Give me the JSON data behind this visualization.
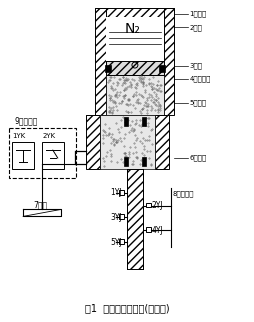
{
  "title": "图1  液压机构原理图(改进前)",
  "bg_color": "#ffffff",
  "fig_width": 2.55,
  "fig_height": 3.22,
  "dpi": 100,
  "n2_text": "N₂",
  "right_labels": [
    "1储压筒",
    "2氮气",
    "3活塞",
    "4活塞密封",
    "5航空油",
    "6活塞杆"
  ],
  "label9": "9压力开关",
  "label7": "7油路",
  "label8": "8微动开关",
  "lbl_1yk": "1YK",
  "lbl_2yk": "2YK",
  "lbl_1yj": "1YJ",
  "lbl_2yj": "2YJ",
  "lbl_3yj": "3YJ",
  "lbl_4yj": "4YJ",
  "lbl_5yj": "5YJ",
  "line_color": "#000000",
  "text_color": "#000000",
  "hatch_fc": "#ffffff",
  "oil_fc": "#e0e0e0"
}
